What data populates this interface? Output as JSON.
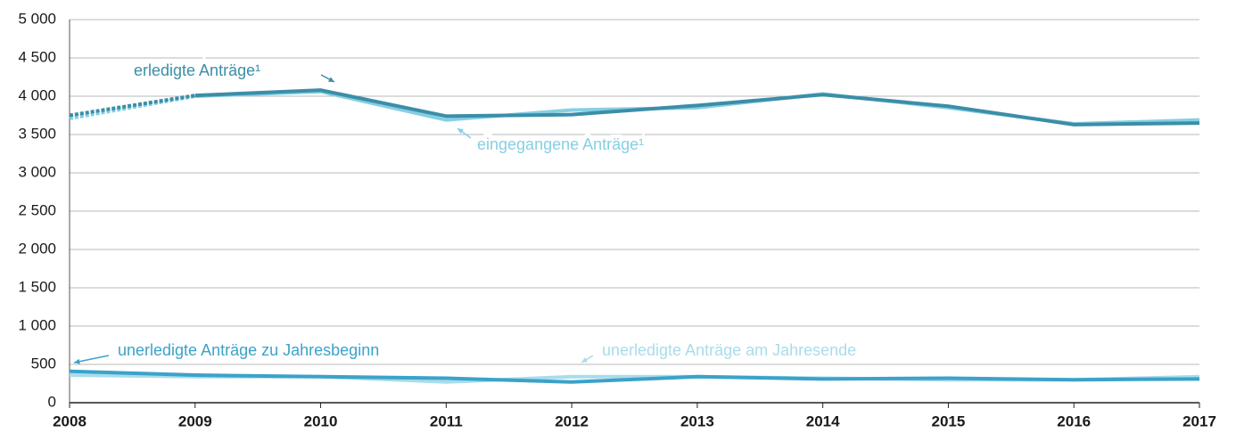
{
  "chart_data": {
    "type": "line",
    "x": [
      2008,
      2009,
      2010,
      2011,
      2012,
      2013,
      2014,
      2015,
      2016,
      2017
    ],
    "xlim": [
      2008,
      2017
    ],
    "xticks": [
      2008,
      2009,
      2010,
      2011,
      2012,
      2013,
      2014,
      2015,
      2016,
      2017
    ],
    "ylim": [
      0,
      5000
    ],
    "yticks": [
      0,
      500,
      {
        "value": 1000,
        "label": "1 000"
      },
      {
        "value": 1500,
        "label": "1 500"
      },
      {
        "value": 2000,
        "label": "2 000"
      },
      {
        "value": 2500,
        "label": "2 500"
      },
      {
        "value": 3000,
        "label": "3 000"
      },
      {
        "value": 3500,
        "label": "3 500"
      },
      {
        "value": 4000,
        "label": "4 000"
      },
      {
        "value": 4500,
        "label": "4 500"
      },
      {
        "value": 5000,
        "label": "5 000"
      }
    ],
    "grid": true,
    "series": [
      {
        "name": "eingegangene Anträge¹",
        "color": "#86cfe2",
        "dashed_to": 2009,
        "values": [
          3710,
          4000,
          4060,
          3690,
          3820,
          3850,
          4030,
          3850,
          3640,
          3690
        ]
      },
      {
        "name": "erledigte Anträge¹",
        "color": "#3b8ea8",
        "dashed_to": 2009,
        "values": [
          3750,
          4010,
          4080,
          3740,
          3760,
          3880,
          4020,
          3870,
          3630,
          3650
        ]
      },
      {
        "name": "unerledigte Anträge am Jahresende",
        "color": "#a9dcec",
        "values": [
          360,
          340,
          340,
          270,
          340,
          340,
          320,
          300,
          300,
          340
        ]
      },
      {
        "name": "unerledigte Anträge zu Jahresbeginn",
        "color": "#3ca2c9",
        "values": [
          410,
          360,
          340,
          320,
          270,
          340,
          310,
          320,
          300,
          310
        ]
      }
    ]
  }
}
